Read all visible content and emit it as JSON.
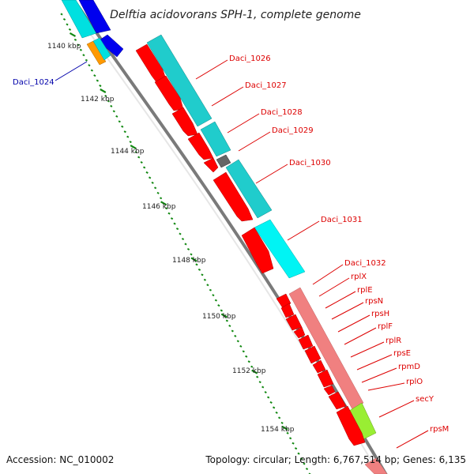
{
  "title": "Delftia acidovorans SPH-1, complete genome",
  "footer": {
    "accession": "Accession: NC_010002",
    "topology": "Topology: circular; Length: 6,767,514 bp; Genes: 6,135"
  },
  "colors": {
    "cds_red": "#ff0000",
    "rrna_cyan": "#00e0e0",
    "blue_gene": "#0000ee",
    "orange_gene": "#ff9900",
    "green_gene": "#99ee33",
    "pink_gene": "#f08080",
    "gray_gene": "#666666",
    "backbone": "#888888",
    "tick": "#118811",
    "label_red": "#dd0000",
    "label_blue": "#0000aa"
  },
  "ticks": [
    "1140 kbp",
    "1142 kbp",
    "1144 kbp",
    "1146 kbp",
    "1148 kbp",
    "1150 kbp",
    "1152 kbp",
    "1154 kbp"
  ],
  "genes": [
    {
      "name": "Daci_1024",
      "kind": "blue"
    },
    {
      "name": "Daci_1026",
      "kind": "red"
    },
    {
      "name": "Daci_1027",
      "kind": "red"
    },
    {
      "name": "Daci_1028",
      "kind": "red"
    },
    {
      "name": "Daci_1029",
      "kind": "red"
    },
    {
      "name": "Daci_1030",
      "kind": "red"
    },
    {
      "name": "Daci_1031",
      "kind": "red"
    },
    {
      "name": "Daci_1032",
      "kind": "red"
    },
    {
      "name": "rplX",
      "kind": "red"
    },
    {
      "name": "rplE",
      "kind": "red"
    },
    {
      "name": "rpsN",
      "kind": "red"
    },
    {
      "name": "rpsH",
      "kind": "red"
    },
    {
      "name": "rplF",
      "kind": "red"
    },
    {
      "name": "rplR",
      "kind": "red"
    },
    {
      "name": "rpsE",
      "kind": "red"
    },
    {
      "name": "rpmD",
      "kind": "red"
    },
    {
      "name": "rplO",
      "kind": "red"
    },
    {
      "name": "secY",
      "kind": "red"
    },
    {
      "name": "rpsM",
      "kind": "red"
    }
  ]
}
